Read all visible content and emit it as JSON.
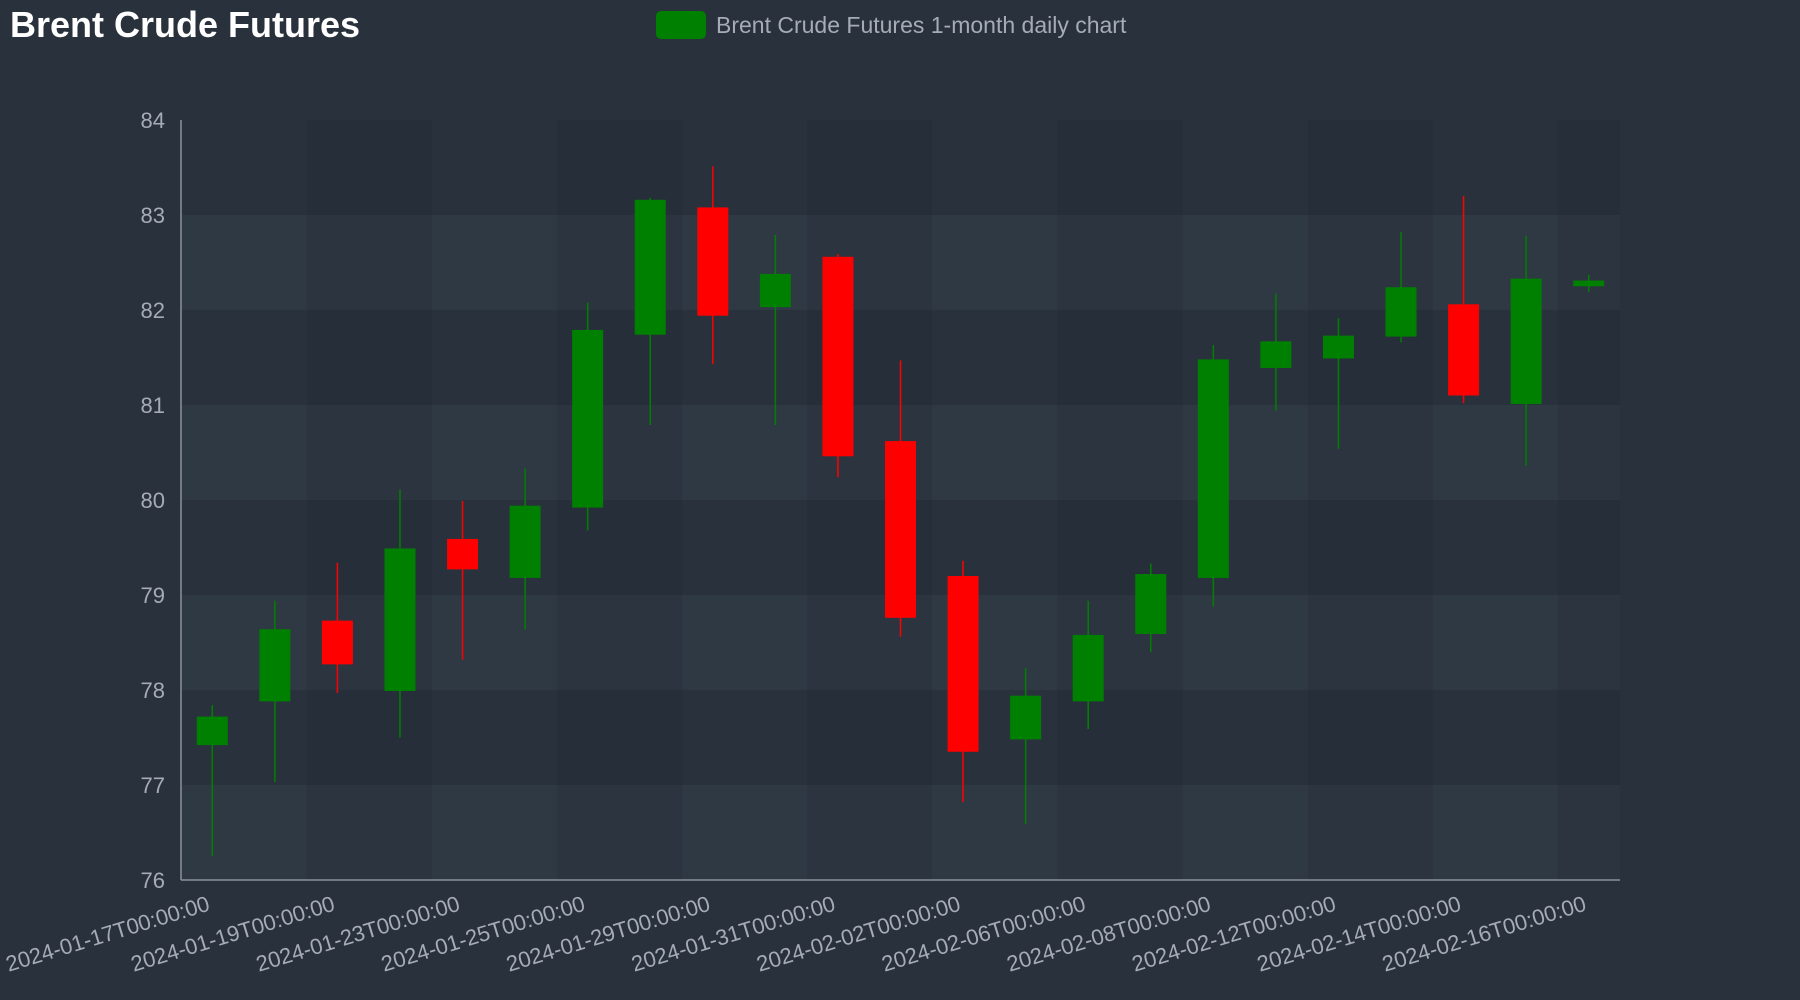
{
  "title": "Brent Crude Futures",
  "colors": {
    "background": "#29323c",
    "up": "#008000",
    "down": "#ff0000",
    "band": "#353f4a",
    "axis": "#8a929b",
    "text": "#a5acb5"
  },
  "chart_data": {
    "type": "candlestick",
    "title": "Brent Crude Futures",
    "legend": {
      "position": "top-center",
      "entries": [
        "Brent Crude Futures 1-month daily chart"
      ]
    },
    "series": [
      {
        "name": "Brent Crude Futures 1-month daily chart",
        "candles": [
          {
            "date": "2024-01-17",
            "open": 77.42,
            "high": 77.84,
            "low": 76.25,
            "close": 77.72
          },
          {
            "date": "2024-01-18",
            "open": 77.88,
            "high": 78.94,
            "low": 77.03,
            "close": 78.64
          },
          {
            "date": "2024-01-19",
            "open": 78.73,
            "high": 79.34,
            "low": 77.97,
            "close": 78.27
          },
          {
            "date": "2024-01-22",
            "open": 77.99,
            "high": 80.11,
            "low": 77.5,
            "close": 79.49
          },
          {
            "date": "2024-01-23",
            "open": 79.59,
            "high": 79.99,
            "low": 78.32,
            "close": 79.27
          },
          {
            "date": "2024-01-24",
            "open": 79.18,
            "high": 80.33,
            "low": 78.64,
            "close": 79.94
          },
          {
            "date": "2024-01-25",
            "open": 79.92,
            "high": 82.08,
            "low": 79.68,
            "close": 81.79
          },
          {
            "date": "2024-01-26",
            "open": 81.74,
            "high": 83.18,
            "low": 80.79,
            "close": 83.16
          },
          {
            "date": "2024-01-29",
            "open": 83.08,
            "high": 83.51,
            "low": 81.43,
            "close": 81.94
          },
          {
            "date": "2024-01-30",
            "open": 82.03,
            "high": 82.79,
            "low": 80.79,
            "close": 82.38
          },
          {
            "date": "2024-01-31",
            "open": 82.56,
            "high": 82.59,
            "low": 80.24,
            "close": 80.46
          },
          {
            "date": "2024-02-01",
            "open": 80.62,
            "high": 81.47,
            "low": 78.56,
            "close": 78.76
          },
          {
            "date": "2024-02-02",
            "open": 79.2,
            "high": 79.36,
            "low": 76.82,
            "close": 77.35
          },
          {
            "date": "2024-02-05",
            "open": 77.48,
            "high": 78.23,
            "low": 76.59,
            "close": 77.94
          },
          {
            "date": "2024-02-06",
            "open": 77.88,
            "high": 78.94,
            "low": 77.59,
            "close": 78.58
          },
          {
            "date": "2024-02-07",
            "open": 78.59,
            "high": 79.33,
            "low": 78.4,
            "close": 79.22
          },
          {
            "date": "2024-02-08",
            "open": 79.18,
            "high": 81.63,
            "low": 78.88,
            "close": 81.48
          },
          {
            "date": "2024-02-09",
            "open": 81.39,
            "high": 82.17,
            "low": 80.94,
            "close": 81.67
          },
          {
            "date": "2024-02-12",
            "open": 81.49,
            "high": 81.91,
            "low": 80.54,
            "close": 81.73
          },
          {
            "date": "2024-02-13",
            "open": 81.72,
            "high": 82.82,
            "low": 81.66,
            "close": 82.24
          },
          {
            "date": "2024-02-14",
            "open": 82.06,
            "high": 83.2,
            "low": 81.02,
            "close": 81.1
          },
          {
            "date": "2024-02-15",
            "open": 81.01,
            "high": 82.78,
            "low": 80.36,
            "close": 82.33
          },
          {
            "date": "2024-02-16",
            "open": 82.25,
            "high": 82.37,
            "low": 82.19,
            "close": 82.31
          }
        ]
      }
    ],
    "xlabel": "",
    "ylabel": "",
    "ylim": [
      76,
      84
    ],
    "yticks": [
      76,
      77,
      78,
      79,
      80,
      81,
      82,
      83,
      84
    ],
    "xticks": [
      {
        "date": "2024-01-17",
        "label": "2024-01-17T00:00:00"
      },
      {
        "date": "2024-01-19",
        "label": "2024-01-19T00:00:00"
      },
      {
        "date": "2024-01-23",
        "label": "2024-01-23T00:00:00"
      },
      {
        "date": "2024-01-25",
        "label": "2024-01-25T00:00:00"
      },
      {
        "date": "2024-01-29",
        "label": "2024-01-29T00:00:00"
      },
      {
        "date": "2024-01-31",
        "label": "2024-01-31T00:00:00"
      },
      {
        "date": "2024-02-02",
        "label": "2024-02-02T00:00:00"
      },
      {
        "date": "2024-02-06",
        "label": "2024-02-06T00:00:00"
      },
      {
        "date": "2024-02-08",
        "label": "2024-02-08T00:00:00"
      },
      {
        "date": "2024-02-12",
        "label": "2024-02-12T00:00:00"
      },
      {
        "date": "2024-02-14",
        "label": "2024-02-14T00:00:00"
      },
      {
        "date": "2024-02-16",
        "label": "2024-02-16T00:00:00"
      }
    ],
    "grid": true
  }
}
